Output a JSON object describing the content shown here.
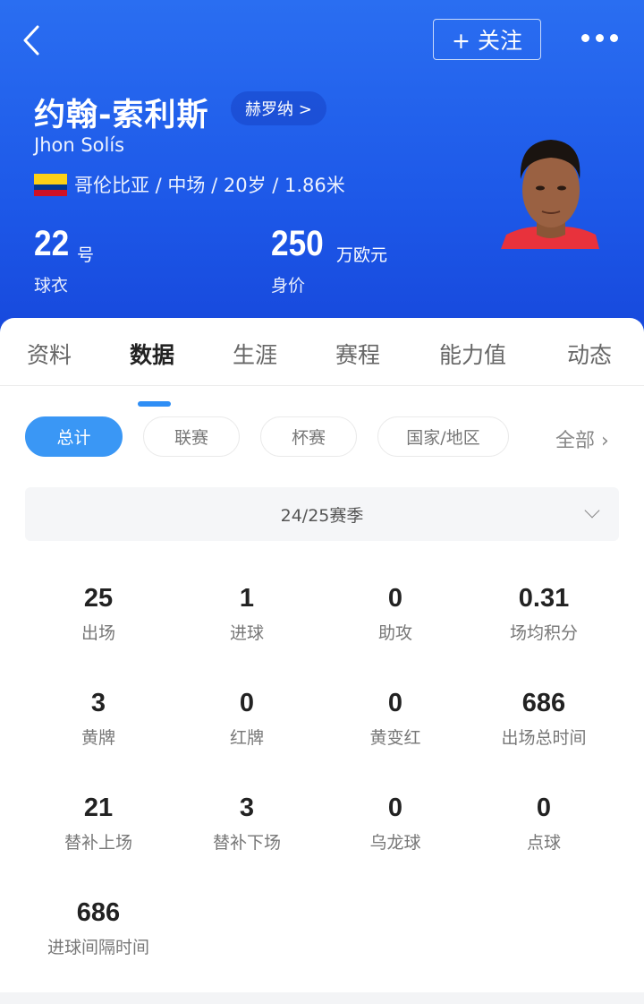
{
  "header": {
    "follow_label": "+ 关注",
    "name_cn": "约翰-索利斯",
    "club": "赫罗纳 >",
    "name_en": "Jhon Solís",
    "meta": "哥伦比亚 / 中场 / 20岁 / 1.86米",
    "shirt_number": "22",
    "shirt_unit": "号",
    "shirt_label": "球衣",
    "value": "250",
    "value_unit": "万欧元",
    "value_label": "身价",
    "flag_colors": [
      "#fcd116",
      "#003893",
      "#ce1126"
    ]
  },
  "tabs": [
    {
      "label": "资料"
    },
    {
      "label": "数据",
      "active": true
    },
    {
      "label": "生涯"
    },
    {
      "label": "赛程"
    },
    {
      "label": "能力值"
    },
    {
      "label": "动态"
    }
  ],
  "filters": {
    "chips": [
      {
        "label": "总计",
        "active": true
      },
      {
        "label": "联赛"
      },
      {
        "label": "杯赛"
      },
      {
        "label": "国家/地区"
      }
    ],
    "all_label": "全部"
  },
  "season": {
    "selected": "24/25赛季"
  },
  "stats": [
    {
      "value": "25",
      "label": "出场"
    },
    {
      "value": "1",
      "label": "进球"
    },
    {
      "value": "0",
      "label": "助攻"
    },
    {
      "value": "0.31",
      "label": "场均积分"
    },
    {
      "value": "3",
      "label": "黄牌"
    },
    {
      "value": "0",
      "label": "红牌"
    },
    {
      "value": "0",
      "label": "黄变红"
    },
    {
      "value": "686",
      "label": "出场总时间"
    },
    {
      "value": "21",
      "label": "替补上场"
    },
    {
      "value": "3",
      "label": "替补下场"
    },
    {
      "value": "0",
      "label": "乌龙球"
    },
    {
      "value": "0",
      "label": "点球"
    },
    {
      "value": "686",
      "label": "进球间隔时间"
    }
  ],
  "colors": {
    "accent": "#3a97f5",
    "header_blue": "#1f5ce9"
  }
}
